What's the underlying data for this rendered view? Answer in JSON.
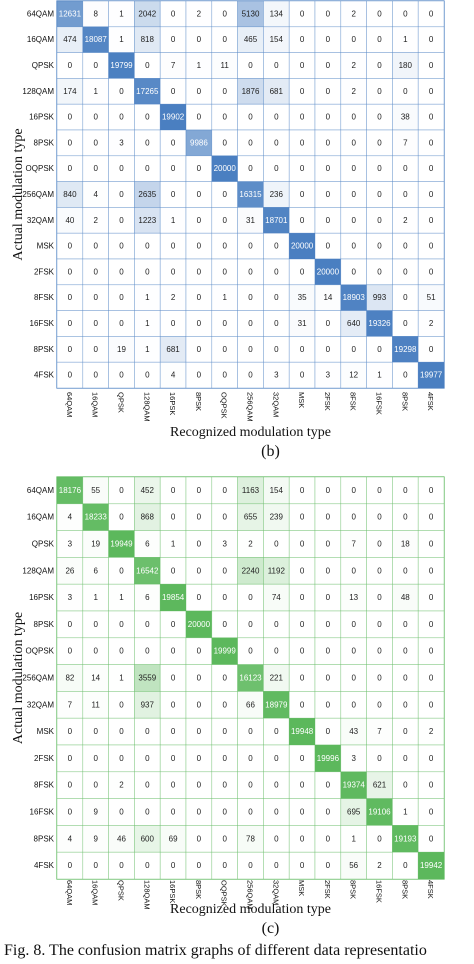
{
  "chart_data": [
    {
      "type": "heatmap",
      "subfigure_label": "(b)",
      "xlabel": "Recognized modulation type",
      "ylabel": "Actual modulation type",
      "rows": [
        "64QAM",
        "16QAM",
        "QPSK",
        "128QAM",
        "16PSK",
        "8PSK",
        "OQPSK",
        "256QAM",
        "32QAM",
        "MSK",
        "2FSK",
        "8FSK",
        "16FSK",
        "8PSK",
        "4FSK"
      ],
      "columns": [
        "64QAM",
        "16QAM",
        "QPSK",
        "128QAM",
        "16PSK",
        "8PSK",
        "OQPSK",
        "256QAM",
        "32QAM",
        "MSK",
        "2FSK",
        "8FSK",
        "16FSK",
        "8PSK",
        "4FSK"
      ],
      "values": [
        [
          12631,
          8,
          1,
          2042,
          0,
          2,
          0,
          5130,
          134,
          0,
          0,
          2,
          0,
          0,
          0
        ],
        [
          474,
          18087,
          1,
          818,
          0,
          0,
          0,
          465,
          154,
          0,
          0,
          0,
          0,
          1,
          0
        ],
        [
          0,
          0,
          19799,
          0,
          7,
          1,
          11,
          0,
          0,
          0,
          0,
          2,
          0,
          180,
          0
        ],
        [
          174,
          1,
          0,
          17265,
          0,
          0,
          0,
          1876,
          681,
          0,
          0,
          2,
          0,
          0,
          0
        ],
        [
          0,
          0,
          0,
          0,
          19902,
          0,
          0,
          0,
          0,
          0,
          0,
          0,
          0,
          38,
          0
        ],
        [
          0,
          0,
          3,
          0,
          0,
          9986,
          0,
          0,
          0,
          0,
          0,
          0,
          0,
          7,
          0
        ],
        [
          0,
          0,
          0,
          0,
          0,
          0,
          20000,
          0,
          0,
          0,
          0,
          0,
          0,
          0,
          0
        ],
        [
          840,
          4,
          0,
          2635,
          0,
          0,
          0,
          16315,
          236,
          0,
          0,
          0,
          0,
          0,
          0
        ],
        [
          40,
          2,
          0,
          1223,
          1,
          0,
          0,
          31,
          18701,
          0,
          0,
          0,
          0,
          2,
          0
        ],
        [
          0,
          0,
          0,
          0,
          0,
          0,
          0,
          0,
          0,
          20000,
          0,
          0,
          0,
          0,
          0
        ],
        [
          0,
          0,
          0,
          0,
          0,
          0,
          0,
          0,
          0,
          0,
          20000,
          0,
          0,
          0,
          0
        ],
        [
          0,
          0,
          0,
          1,
          2,
          0,
          1,
          0,
          0,
          35,
          14,
          18903,
          993,
          0,
          51
        ],
        [
          0,
          0,
          0,
          1,
          0,
          0,
          0,
          0,
          0,
          31,
          0,
          640,
          19326,
          0,
          2
        ],
        [
          0,
          0,
          19,
          1,
          681,
          0,
          0,
          0,
          0,
          0,
          0,
          0,
          0,
          19298,
          0
        ],
        [
          0,
          0,
          0,
          0,
          4,
          0,
          0,
          0,
          3,
          0,
          3,
          12,
          1,
          0,
          19977
        ]
      ],
      "colormap": {
        "low": "#ffffff",
        "high": "#4a7fc1"
      }
    },
    {
      "type": "heatmap",
      "subfigure_label": "(c)",
      "xlabel": "Recognized modulation type",
      "ylabel": "Actual modulation type",
      "rows": [
        "64QAM",
        "16QAM",
        "QPSK",
        "128QAM",
        "16PSK",
        "8PSK",
        "OQPSK",
        "256QAM",
        "32QAM",
        "MSK",
        "2FSK",
        "8FSK",
        "16FSK",
        "8PSK",
        "4FSK"
      ],
      "columns": [
        "64QAM",
        "16QAM",
        "QPSK",
        "128QAM",
        "16PSK",
        "8PSK",
        "OQPSK",
        "256QAM",
        "32QAM",
        "MSK",
        "2FSK",
        "8PSK",
        "16FSK",
        "8PSK",
        "4FSK"
      ],
      "values": [
        [
          18176,
          55,
          0,
          452,
          0,
          0,
          0,
          1163,
          154,
          0,
          0,
          0,
          0,
          0,
          0
        ],
        [
          4,
          18233,
          0,
          868,
          0,
          0,
          0,
          655,
          239,
          0,
          0,
          0,
          0,
          0,
          0
        ],
        [
          3,
          19,
          19949,
          6,
          1,
          0,
          3,
          2,
          0,
          0,
          0,
          7,
          0,
          18,
          0
        ],
        [
          26,
          6,
          0,
          16542,
          0,
          0,
          0,
          2240,
          1192,
          0,
          0,
          0,
          0,
          0,
          0
        ],
        [
          3,
          1,
          1,
          6,
          19854,
          0,
          0,
          0,
          74,
          0,
          0,
          13,
          0,
          48,
          0
        ],
        [
          0,
          0,
          0,
          0,
          0,
          20000,
          0,
          0,
          0,
          0,
          0,
          0,
          0,
          0,
          0
        ],
        [
          0,
          0,
          0,
          0,
          0,
          0,
          19999,
          0,
          0,
          0,
          0,
          0,
          0,
          0,
          0
        ],
        [
          82,
          14,
          1,
          3559,
          0,
          0,
          0,
          16123,
          221,
          0,
          0,
          0,
          0,
          0,
          0
        ],
        [
          7,
          11,
          0,
          937,
          0,
          0,
          0,
          66,
          18979,
          0,
          0,
          0,
          0,
          0,
          0
        ],
        [
          0,
          0,
          0,
          0,
          0,
          0,
          0,
          0,
          0,
          19948,
          0,
          43,
          7,
          0,
          2
        ],
        [
          0,
          0,
          0,
          0,
          0,
          0,
          0,
          0,
          0,
          0,
          19996,
          3,
          0,
          0,
          0
        ],
        [
          0,
          0,
          2,
          0,
          0,
          0,
          0,
          0,
          0,
          0,
          0,
          19374,
          621,
          0,
          0
        ],
        [
          0,
          9,
          0,
          0,
          0,
          0,
          0,
          0,
          0,
          0,
          0,
          695,
          19106,
          1,
          0
        ],
        [
          4,
          9,
          46,
          600,
          69,
          0,
          0,
          78,
          0,
          0,
          0,
          1,
          0,
          19193,
          0
        ],
        [
          0,
          0,
          0,
          0,
          0,
          0,
          0,
          0,
          0,
          0,
          0,
          56,
          2,
          0,
          19942
        ]
      ],
      "colormap": {
        "low": "#ffffff",
        "high": "#5cb85c"
      }
    }
  ],
  "caption": "Fig. 8. The confusion matrix graphs of different data representatio"
}
